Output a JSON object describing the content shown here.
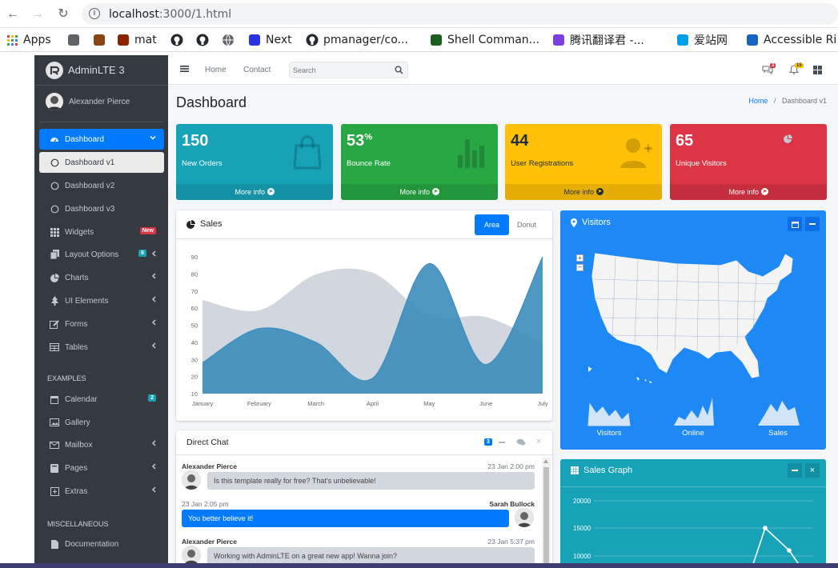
{
  "browser": {
    "url_host": "localhost",
    "url_rest": ":3000/1.html",
    "bookmarks": [
      {
        "label": "Apps",
        "icon": "apps-grid-icon"
      },
      {
        "label": "",
        "icon": "bookmark-icon"
      },
      {
        "label": "",
        "icon": "book-icon"
      },
      {
        "label": "mat",
        "icon": "mat-icon"
      },
      {
        "label": "",
        "icon": "github-icon"
      },
      {
        "label": "",
        "icon": "github-icon"
      },
      {
        "label": "",
        "icon": "globe-icon"
      },
      {
        "label": "Next",
        "icon": "baidu-paw-icon"
      },
      {
        "label": "pmanager/co...",
        "icon": "github-icon"
      },
      {
        "label": "Shell Comman...",
        "icon": "shell-icon"
      },
      {
        "label": "腾讯翻译君 -...",
        "icon": "translate-icon"
      },
      {
        "label": "爱站网",
        "icon": "aizhan-icon"
      },
      {
        "label": "Accessible Ri",
        "icon": "w3-icon"
      }
    ]
  },
  "sidebar": {
    "brand": "AdminLTE 3",
    "user": "Alexander Pierce",
    "dashboard": "Dashboard",
    "sub": [
      "Dashboard v1",
      "Dashboard v2",
      "Dashboard v3"
    ],
    "items": [
      {
        "label": "Widgets",
        "icon": "widgets-icon",
        "badge": "New",
        "badge_color": "#dc3545"
      },
      {
        "label": "Layout Options",
        "icon": "copy-icon",
        "badge": "6",
        "badge_color": "#17a2b8"
      },
      {
        "label": "Charts",
        "icon": "pie-chart-icon"
      },
      {
        "label": "UI Elements",
        "icon": "tree-icon"
      },
      {
        "label": "Forms",
        "icon": "edit-icon"
      },
      {
        "label": "Tables",
        "icon": "table-icon"
      }
    ],
    "examples_header": "EXAMPLES",
    "examples": [
      {
        "label": "Calendar",
        "icon": "calendar-icon",
        "badge": "2",
        "badge_color": "#17a2b8"
      },
      {
        "label": "Gallery",
        "icon": "image-icon"
      },
      {
        "label": "Mailbox",
        "icon": "envelope-icon"
      },
      {
        "label": "Pages",
        "icon": "book-icon"
      },
      {
        "label": "Extras",
        "icon": "plus-square-icon"
      }
    ],
    "misc_header": "MISCELLANEOUS",
    "misc": [
      {
        "label": "Documentation",
        "icon": "file-icon"
      }
    ]
  },
  "topbar": {
    "home": "Home",
    "contact": "Contact",
    "search_placeholder": "Search",
    "messages_count": "3",
    "notifications_count": "15"
  },
  "page": {
    "title": "Dashboard",
    "breadcrumb_home": "Home",
    "breadcrumb_current": "Dashboard v1"
  },
  "stats": [
    {
      "value": "150",
      "suffix": "",
      "label": "New Orders",
      "more": "More info",
      "color": "#17a2b8",
      "icon": "shopping-bag-icon"
    },
    {
      "value": "53",
      "suffix": "%",
      "label": "Bounce Rate",
      "more": "More info",
      "color": "#28a745",
      "icon": "bar-chart-icon"
    },
    {
      "value": "44",
      "suffix": "",
      "label": "User Registrations",
      "more": "More info",
      "color": "#ffc107",
      "icon": "user-plus-icon"
    },
    {
      "value": "65",
      "suffix": "",
      "label": "Unique Visitors",
      "more": "More info",
      "color": "#dc3545",
      "icon": "pie-chart-icon"
    }
  ],
  "sales": {
    "title": "Sales",
    "tabs": [
      "Area",
      "Donut"
    ]
  },
  "chart_data": {
    "type": "area",
    "categories": [
      "January",
      "February",
      "March",
      "April",
      "May",
      "June",
      "July"
    ],
    "ylim": [
      10,
      90
    ],
    "yticks": [
      10,
      20,
      30,
      40,
      50,
      60,
      70,
      80,
      90
    ],
    "series": [
      {
        "values": [
          65,
          59,
          80,
          81,
          56,
          55,
          40
        ],
        "color": "#d2d6de"
      },
      {
        "values": [
          28,
          48,
          40,
          19,
          86,
          27,
          90
        ],
        "color": "#3c8dbc"
      }
    ]
  },
  "chat": {
    "title": "Direct Chat",
    "badge": "3",
    "messages": [
      {
        "name": "Alexander Pierce",
        "time": "23 Jan 2:00 pm",
        "text": "Is this template really for free? That's unbelievable!",
        "side": "left"
      },
      {
        "name": "Sarah Bullock",
        "time": "23 Jan 2:05 pm",
        "text": "You better believe it!",
        "side": "right"
      },
      {
        "name": "Alexander Pierce",
        "time": "23 Jan 5:37 pm",
        "text": "Working with AdminLTE on a great new app! Wanna join?",
        "side": "left"
      }
    ]
  },
  "visitors": {
    "title": "Visitors",
    "labels": [
      "Visitors",
      "Online",
      "Sales"
    ]
  },
  "sales_graph": {
    "title": "Sales Graph",
    "yticks": [
      "20000",
      "15000",
      "10000"
    ]
  }
}
